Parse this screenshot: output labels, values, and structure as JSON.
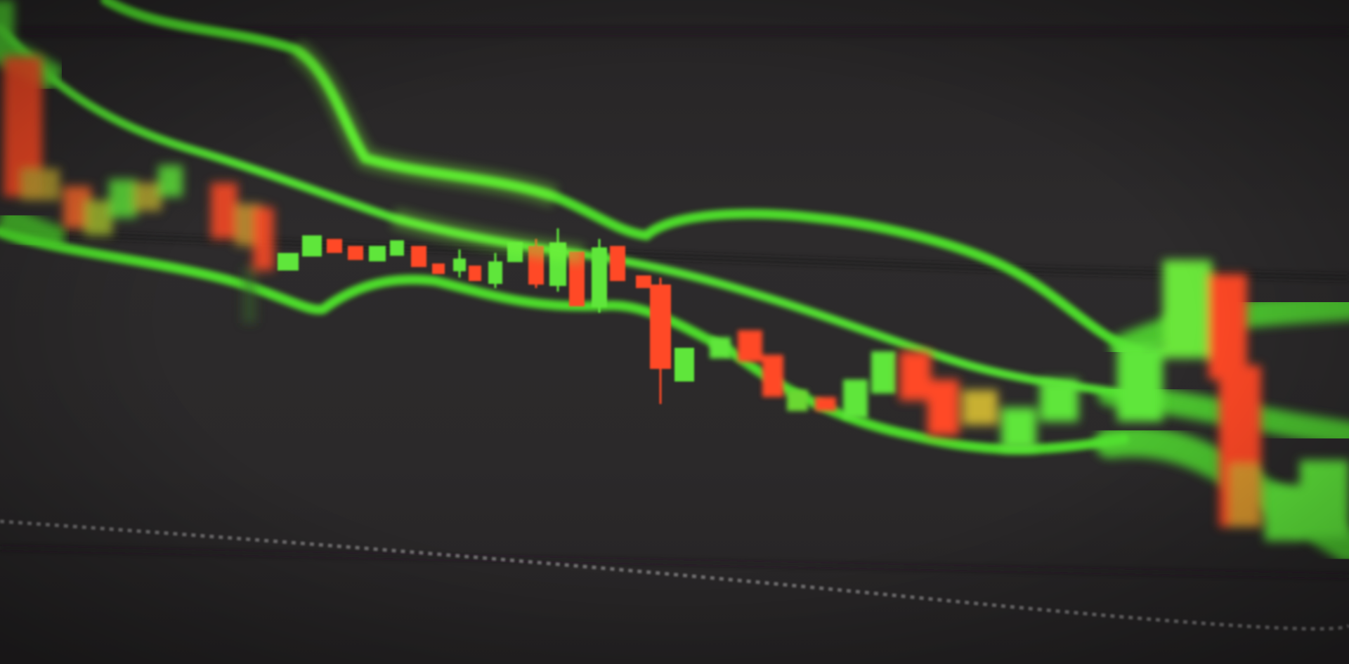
{
  "photo": {
    "subject": "candlestick-chart-with-bollinger-bands",
    "colors": {
      "background": "#2b292a",
      "band": "#4ddc2c",
      "band_bright": "#7cff3a",
      "up_candle": "#5fe63a",
      "down_candle": "#ff4a26",
      "grid": "#1f1d1e",
      "dots": "#8a8889"
    },
    "focus": "center"
  }
}
